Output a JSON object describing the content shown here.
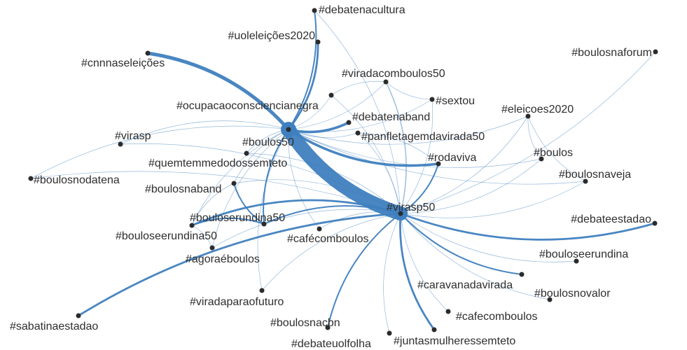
{
  "graph": {
    "edge_color": "#3f7fbf",
    "node_color": "#2b2b2b",
    "nodes": [
      {
        "id": "virasp50",
        "label": "#virasp50",
        "hub": true
      },
      {
        "id": "boulos50",
        "label": "#boulos50",
        "hub": true
      },
      {
        "id": "debatenacultura",
        "label": "#debatenacultura"
      },
      {
        "id": "uoleleicoes2020",
        "label": "#uoleleições2020"
      },
      {
        "id": "cnnnaseleicoes",
        "label": "#cnnnaseleições"
      },
      {
        "id": "viradacomboulos50",
        "label": "#viradacomboulos50"
      },
      {
        "id": "boulosnaforum",
        "label": "#boulosnaforum"
      },
      {
        "id": "sextou",
        "label": "#sextou"
      },
      {
        "id": "ocupacaoconsciencianegra",
        "label": "#ocupacaoconsciencianegra"
      },
      {
        "id": "debatenaband",
        "label": "#debatenaband"
      },
      {
        "id": "eleicoes2020",
        "label": "#eleicoes2020"
      },
      {
        "id": "panfletagemdavirada50",
        "label": "#panfletagemdavirada50"
      },
      {
        "id": "virasp",
        "label": "#virasp"
      },
      {
        "id": "boulos",
        "label": "#boulos"
      },
      {
        "id": "quemtemmedodossemteto",
        "label": "#quemtemmedodossemteto"
      },
      {
        "id": "rodaviva",
        "label": "#rodaviva"
      },
      {
        "id": "boulosnodatena",
        "label": "#boulosnodatena"
      },
      {
        "id": "boulosnaveja",
        "label": "#boulosnaveja"
      },
      {
        "id": "boulosnaband",
        "label": "#boulosnaband"
      },
      {
        "id": "bouloserundina50a",
        "label": "#bouloserundina50"
      },
      {
        "id": "debateestadao",
        "label": "#debateestadao"
      },
      {
        "id": "bouloseerundina50",
        "label": "#bouloseerundina50"
      },
      {
        "id": "cafecomboulos_acc",
        "label": "#cafécomboulos"
      },
      {
        "id": "agoraeboulos",
        "label": "#agoraéboulos"
      },
      {
        "id": "bouloseerundina",
        "label": "#bouloseerundina"
      },
      {
        "id": "caravanadavirada",
        "label": "#caravanadavirada"
      },
      {
        "id": "boulosnovalor",
        "label": "#boulosnovalor"
      },
      {
        "id": "viradaparaofuturo",
        "label": "#viradaparaofuturo"
      },
      {
        "id": "cafecomboulos",
        "label": "#cafecomboulos"
      },
      {
        "id": "boulosnacbn",
        "label": "#boulosnacbn"
      },
      {
        "id": "sabatinaestadao",
        "label": "#sabatinaestadao"
      },
      {
        "id": "debateuolfolha",
        "label": "#debateuolfolha"
      },
      {
        "id": "juntasmulheressemteto",
        "label": "#juntasmulheressemteto"
      }
    ],
    "edges": [
      {
        "from": "boulos50",
        "to": "virasp50",
        "weight": 10
      },
      {
        "from": "boulos50",
        "to": "cnnnaseleicoes",
        "weight": 5
      },
      {
        "from": "boulos50",
        "to": "rodaviva",
        "weight": 4
      },
      {
        "from": "boulos50",
        "to": "debatenaband",
        "weight": 4
      },
      {
        "from": "boulos50",
        "to": "uoleleicoes2020",
        "weight": 3
      },
      {
        "from": "boulos50",
        "to": "debatenacultura",
        "weight": 2
      },
      {
        "from": "boulos50",
        "to": "bouloserundina50a",
        "weight": 2
      },
      {
        "from": "boulos50",
        "to": "bouloseerundina50",
        "weight": 1
      },
      {
        "from": "boulos50",
        "to": "viradacomboulos50",
        "weight": 1
      },
      {
        "from": "boulos50",
        "to": "sextou",
        "weight": 1
      },
      {
        "from": "boulos50",
        "to": "virasp",
        "weight": 1
      },
      {
        "from": "boulos50",
        "to": "boulosnodatena",
        "weight": 1
      },
      {
        "from": "boulos50",
        "to": "quemtemmedodossemteto",
        "weight": 1
      },
      {
        "from": "boulos50",
        "to": "boulosnaband",
        "weight": 1
      },
      {
        "from": "boulos50",
        "to": "agoraeboulos",
        "weight": 1
      },
      {
        "from": "boulos50",
        "to": "cafecomboulos_acc",
        "weight": 1
      },
      {
        "from": "boulos50",
        "to": "eleicoes2020",
        "weight": 1
      },
      {
        "from": "boulos50",
        "to": "boulos",
        "weight": 1
      },
      {
        "from": "boulos50",
        "to": "boulosnaveja",
        "weight": 1
      },
      {
        "from": "boulos50",
        "to": "ocupacaoconsciencianegra",
        "weight": 1
      },
      {
        "from": "boulos50",
        "to": "panfletagemdavirada50",
        "weight": 1
      },
      {
        "from": "boulos50",
        "to": "viradaparaofuturo",
        "weight": 1
      },
      {
        "from": "virasp50",
        "to": "sabatinaestadao",
        "weight": 3
      },
      {
        "from": "virasp50",
        "to": "bouloseerundina50",
        "weight": 3
      },
      {
        "from": "virasp50",
        "to": "debateestadao",
        "weight": 3
      },
      {
        "from": "virasp50",
        "to": "juntasmulheressemteto",
        "weight": 3
      },
      {
        "from": "virasp50",
        "to": "caravanadavirada",
        "weight": 2
      },
      {
        "from": "virasp50",
        "to": "boulosnacbn",
        "weight": 2
      },
      {
        "from": "virasp50",
        "to": "rodaviva",
        "weight": 2
      },
      {
        "from": "virasp50",
        "to": "bouloserundina50a",
        "weight": 2
      },
      {
        "from": "virasp50",
        "to": "viradacomboulos50",
        "weight": 1.5
      },
      {
        "from": "virasp50",
        "to": "bouloseerundina",
        "weight": 1
      },
      {
        "from": "virasp50",
        "to": "boulosnovalor",
        "weight": 1
      },
      {
        "from": "virasp50",
        "to": "cafecomboulos",
        "weight": 1
      },
      {
        "from": "virasp50",
        "to": "debateuolfolha",
        "weight": 1
      },
      {
        "from": "virasp50",
        "to": "viradaparaofuturo",
        "weight": 1
      },
      {
        "from": "virasp50",
        "to": "agoraeboulos",
        "weight": 1
      },
      {
        "from": "virasp50",
        "to": "boulosnaband",
        "weight": 1
      },
      {
        "from": "virasp50",
        "to": "cafecomboulos_acc",
        "weight": 1
      },
      {
        "from": "virasp50",
        "to": "boulos",
        "weight": 1
      },
      {
        "from": "virasp50",
        "to": "boulosnaveja",
        "weight": 1
      },
      {
        "from": "virasp50",
        "to": "eleicoes2020",
        "weight": 1
      },
      {
        "from": "virasp50",
        "to": "boulosnaforum",
        "weight": 1
      },
      {
        "from": "virasp50",
        "to": "panfletagemdavirada50",
        "weight": 1
      },
      {
        "from": "virasp50",
        "to": "sextou",
        "weight": 1
      },
      {
        "from": "virasp50",
        "to": "debatenacultura",
        "weight": 1
      },
      {
        "from": "virasp50",
        "to": "ocupacaoconsciencianegra",
        "weight": 1
      },
      {
        "from": "virasp50",
        "to": "quemtemmedodossemteto",
        "weight": 1
      },
      {
        "from": "virasp50",
        "to": "virasp",
        "weight": 1
      },
      {
        "from": "virasp50",
        "to": "boulosnodatena",
        "weight": 1
      },
      {
        "from": "viradacomboulos50",
        "to": "sextou",
        "weight": 1
      },
      {
        "from": "viradacomboulos50",
        "to": "ocupacaoconsciencianegra",
        "weight": 1
      },
      {
        "from": "eleicoes2020",
        "to": "boulos",
        "weight": 1
      },
      {
        "from": "eleicoes2020",
        "to": "boulosnaveja",
        "weight": 1
      },
      {
        "from": "rodaviva",
        "to": "panfletagemdavirada50",
        "weight": 1
      },
      {
        "from": "bouloserundina50a",
        "to": "bouloseerundina50",
        "weight": 2
      },
      {
        "from": "boulosnaband",
        "to": "bouloserundina50a",
        "weight": 2
      },
      {
        "from": "boulosnaband",
        "to": "bouloseerundina50",
        "weight": 1
      },
      {
        "from": "agoraeboulos",
        "to": "bouloseerundina50",
        "weight": 1
      }
    ]
  }
}
